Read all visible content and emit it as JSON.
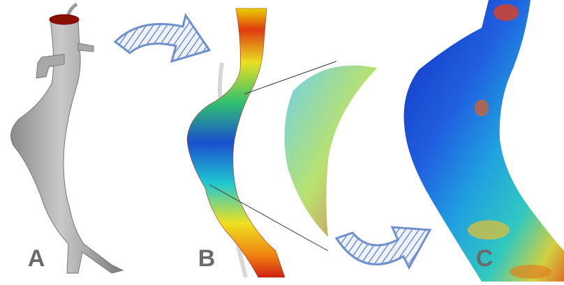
{
  "panels": {
    "a": {
      "label": "A"
    },
    "b": {
      "label": "B"
    },
    "c": {
      "label": "C"
    }
  }
}
